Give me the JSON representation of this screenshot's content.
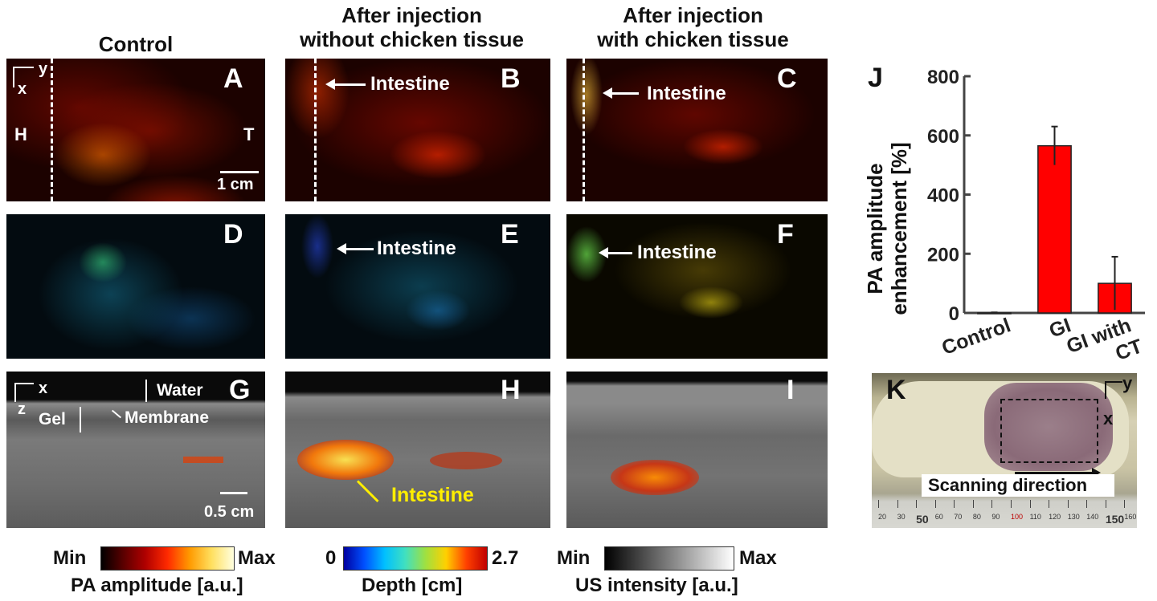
{
  "columns": {
    "control": "Control",
    "without_l1": "After injection",
    "without_l2": "without chicken tissue",
    "with_l1": "After injection",
    "with_l2": "with chicken tissue"
  },
  "panels": {
    "A": "A",
    "B": "B",
    "C": "C",
    "D": "D",
    "E": "E",
    "F": "F",
    "G": "G",
    "H": "H",
    "I": "I",
    "J": "J",
    "K": "K"
  },
  "annotations": {
    "intestine": "Intestine",
    "axis_x": "x",
    "axis_y": "y",
    "axis_z": "z",
    "head": "H",
    "tail": "T",
    "scale_1cm": "1 cm",
    "scale_05cm": "0.5 cm",
    "water": "Water",
    "gel": "Gel",
    "membrane": "Membrane",
    "scanning_direction": "Scanning direction",
    "ruler_marks": [
      "20",
      "30",
      "50",
      "60",
      "70",
      "80",
      "90",
      "100",
      "110",
      "120",
      "130",
      "140",
      "150",
      "160"
    ]
  },
  "colorbars": {
    "pa": {
      "min": "Min",
      "max": "Max",
      "label": "PA amplitude [a.u.]"
    },
    "depth": {
      "min": "0",
      "max": "2.7",
      "label": "Depth [cm]"
    },
    "us": {
      "min": "Min",
      "max": "Max",
      "label": "US intensity [a.u.]"
    }
  },
  "chart_data": {
    "type": "bar",
    "categories": [
      "Control",
      "GI",
      "GI with CT"
    ],
    "category_lines": [
      [
        "Control"
      ],
      [
        "GI"
      ],
      [
        "GI with",
        "CT"
      ]
    ],
    "values": [
      0,
      565,
      100
    ],
    "errors": [
      2,
      65,
      90
    ],
    "ylabel_l1": "PA amplitude",
    "ylabel_l2": "enhancement [%]",
    "ylim": [
      0,
      800
    ],
    "yticks": [
      0,
      200,
      400,
      600,
      800
    ],
    "bar_color": "#ff0000"
  }
}
